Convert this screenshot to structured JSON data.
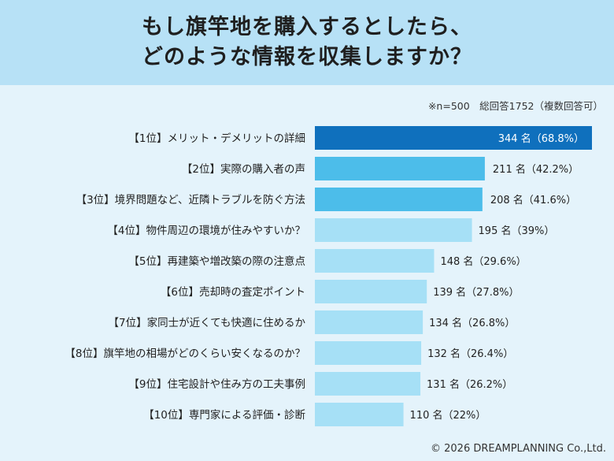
{
  "header": {
    "title_line1": "もし旗竿地を購入するとしたら、",
    "title_line2": "どのような情報を収集しますか？"
  },
  "note": "※n=500　総回答1752（複数回答可）",
  "copyright": "© 2026 DREAMPLANNING Co.,Ltd.",
  "colors": {
    "rank1": "#0f70bd",
    "rank2_3": "#4cbdea",
    "rest": "#a6e0f6",
    "header_bg": "#b7e1f6",
    "page_bg": "#e4f3fb"
  },
  "chart_data": {
    "type": "bar",
    "orientation": "horizontal",
    "title": "もし旗竿地を購入するとしたら、どのような情報を収集しますか？",
    "xlabel": "",
    "ylabel": "",
    "xlim": [
      0,
      344
    ],
    "grid": false,
    "categories": [
      "【1位】メリット・デメリットの詳細",
      "【2位】実際の購入者の声",
      "【3位】境界問題など、近隣トラブルを防ぐ方法",
      "【4位】物件周辺の環境が住みやすいか？",
      "【5位】再建築や増改築の際の注意点",
      "【6位】売却時の査定ポイント",
      "【7位】家同士が近くても快適に住めるか",
      "【8位】旗竿地の相場がどのくらい安くなるのか？",
      "【9位】住宅設計や住み方の工夫事例",
      "【10位】専門家による評価・診断"
    ],
    "values": [
      344,
      211,
      208,
      195,
      148,
      139,
      134,
      132,
      131,
      110
    ],
    "data_labels": [
      "344 名（68.8%）",
      "211 名（42.2%）",
      "208 名（41.6%）",
      "195 名（39%）",
      "148 名（29.6%）",
      "139 名（27.8%）",
      "134 名（26.8%）",
      "132 名（26.4%）",
      "131 名（26.2%）",
      "110 名（22%）"
    ]
  }
}
